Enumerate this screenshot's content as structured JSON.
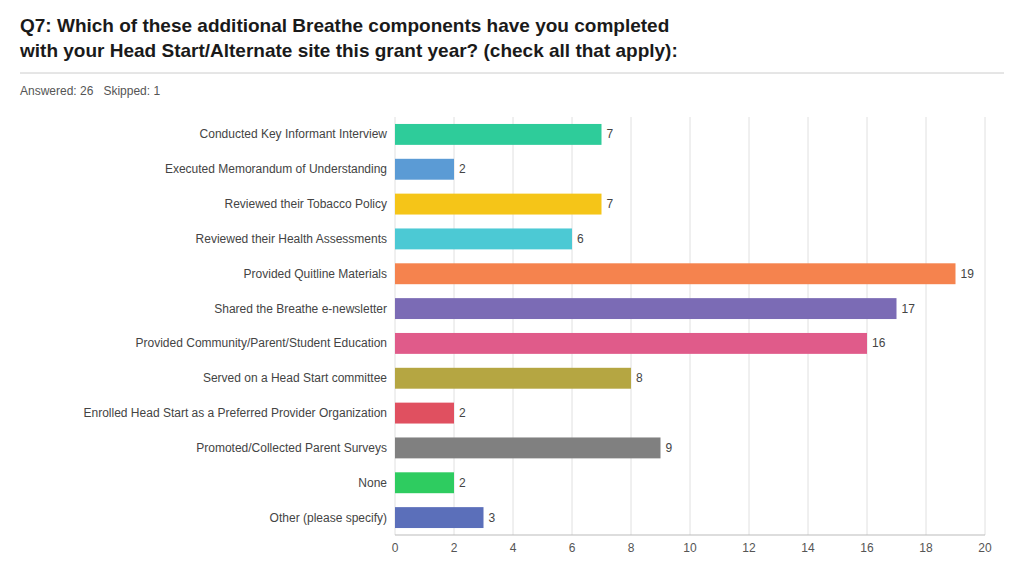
{
  "chart_data": {
    "type": "bar",
    "orientation": "horizontal",
    "title": "Q7: Which of these additional Breathe components have you completed\nwith your Head Start/Alternate site this grant year? (check all that apply):",
    "annotations": [
      "Answered: 26   Skipped: 1"
    ],
    "categories": [
      "Conducted Key Informant Interview",
      "Executed Memorandum of Understanding",
      "Reviewed their Tobacco Policy",
      "Reviewed their Health Assessments",
      "Provided Quitline Materials",
      "Shared the Breathe e-newsletter",
      "Provided Community/Parent/Student Education",
      "Served on a Head Start committee",
      "Enrolled Head Start as a Preferred Provider Organization",
      "Promoted/Collected Parent Surveys",
      "None",
      "Other (please specify)"
    ],
    "values": [
      7,
      2,
      7,
      6,
      19,
      17,
      16,
      8,
      2,
      9,
      2,
      3
    ],
    "colors": [
      "#2ecc9a",
      "#5b9bd5",
      "#f5c518",
      "#4cc9d4",
      "#f5834e",
      "#7b6bb5",
      "#e05b8a",
      "#b5a642",
      "#e05060",
      "#808080",
      "#2ecc60",
      "#5b6fba"
    ],
    "xlim": [
      0,
      20
    ],
    "xticks": [
      0,
      2,
      4,
      6,
      8,
      10,
      12,
      14,
      16,
      18,
      20
    ],
    "grid": true,
    "data_labels": true
  }
}
